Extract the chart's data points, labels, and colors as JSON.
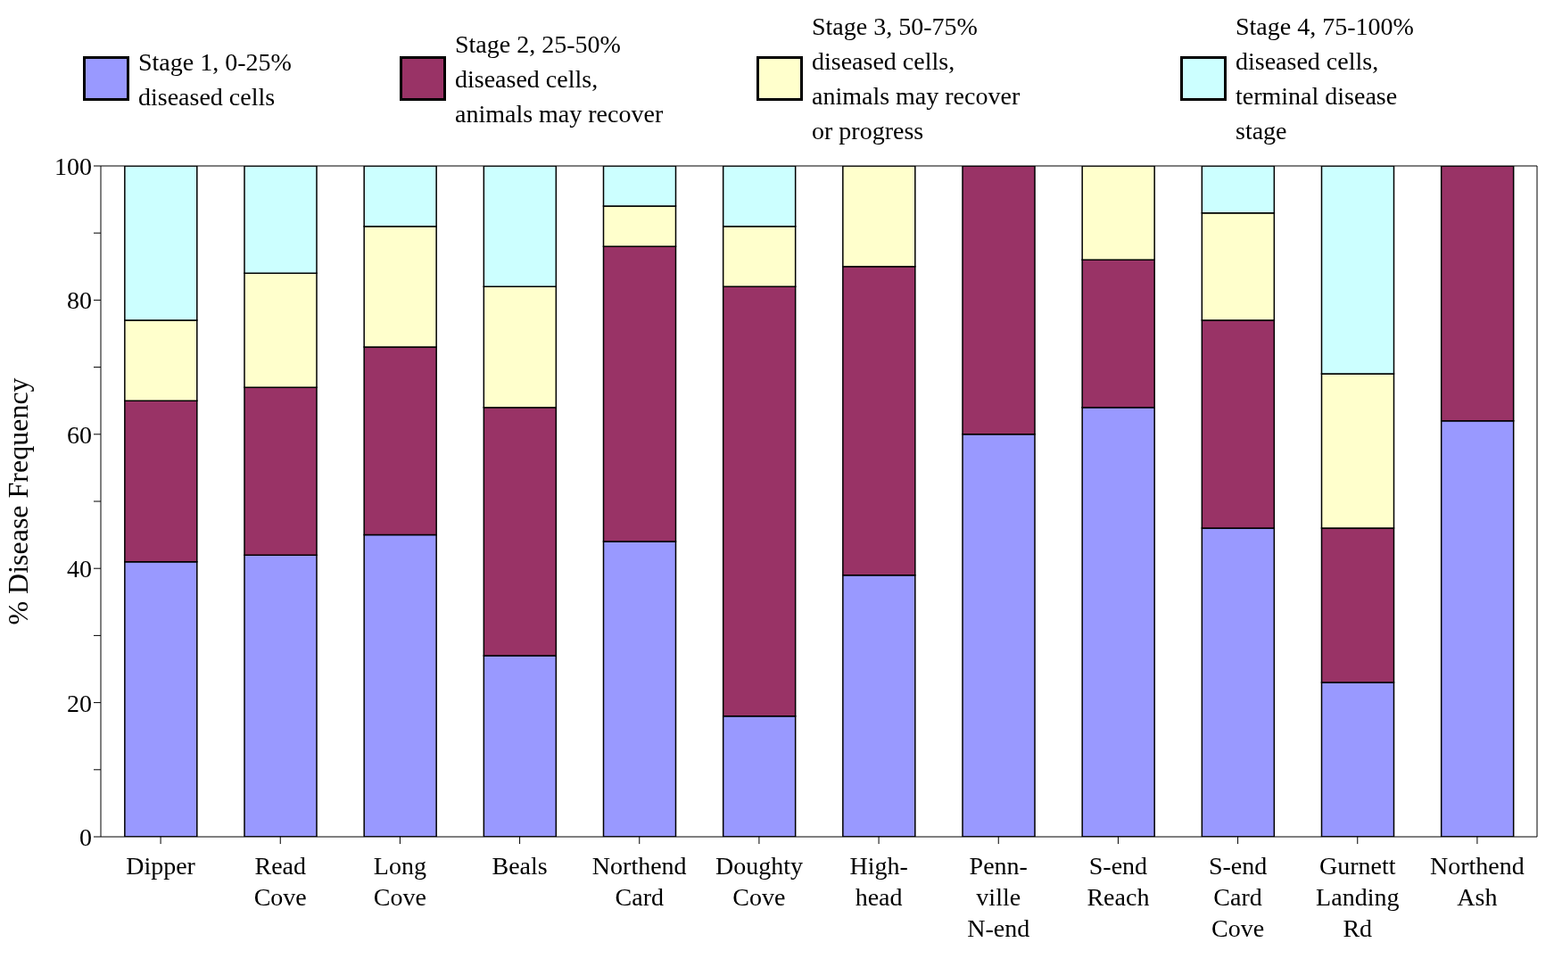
{
  "chart_data": {
    "type": "bar",
    "stacked": true,
    "ylabel": "% Disease Frequency",
    "categories": [
      "Dipper",
      "Read\nCove",
      "Long\nCove",
      "Beals",
      "Northend\nCard",
      "Doughty\nCove",
      "High-\nhead",
      "Penn-\nville\nN-end",
      "S-end\nReach",
      "S-end\nCard\nCove",
      "Gurnett\nLanding\nRd",
      "Northend\nAsh"
    ],
    "series": [
      {
        "name": "Stage 1, 0-25%\ndiseased cells",
        "color": "#9999ff",
        "values": [
          41,
          42,
          45,
          27,
          44,
          18,
          39,
          60,
          64,
          46,
          23,
          62
        ]
      },
      {
        "name": "Stage 2, 25-50%\ndiseased cells,\nanimals may recover",
        "color": "#993366",
        "values": [
          24,
          25,
          28,
          37,
          44,
          64,
          46,
          40,
          22,
          31,
          23,
          38
        ]
      },
      {
        "name": "Stage 3, 50-75%\ndiseased cells,\nanimals may recover\nor progress",
        "color": "#ffffcc",
        "values": [
          12,
          17,
          18,
          18,
          6,
          9,
          15,
          0,
          14,
          16,
          23,
          0
        ]
      },
      {
        "name": "Stage 4, 75-100%\ndiseased cells,\nterminal disease\nstage",
        "color": "#ccffff",
        "values": [
          23,
          16,
          9,
          18,
          6,
          9,
          0,
          0,
          0,
          7,
          31,
          0
        ]
      }
    ],
    "ylim": [
      0,
      100
    ],
    "yticks": [
      0,
      {
        "value": 10,
        "label": null
      },
      20,
      {
        "value": 30,
        "label": null
      },
      40,
      {
        "value": 50,
        "label": null
      },
      60,
      {
        "value": 70,
        "label": null
      },
      80,
      {
        "value": 90,
        "label": null
      },
      100
    ],
    "grid": false,
    "legend": "top"
  }
}
